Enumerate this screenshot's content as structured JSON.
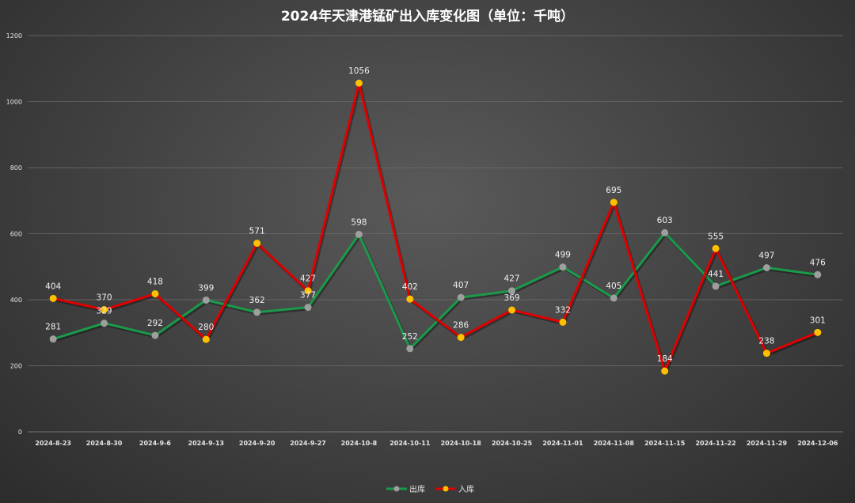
{
  "chart_data": {
    "type": "line",
    "title": "2024年天津港锰矿出入库变化图（单位：千吨）",
    "categories": [
      "2024-8-23",
      "2024-8-30",
      "2024-9-6",
      "2024-9-13",
      "2024-9-20",
      "2024-9-27",
      "2024-10-8",
      "2024-10-11",
      "2024-10-18",
      "2024-10-25",
      "2024-11-01",
      "2024-11-08",
      "2024-11-15",
      "2024-11-22",
      "2024-11-29",
      "2024-12-06"
    ],
    "y_ticks": [
      "0",
      "200",
      "400",
      "600",
      "800",
      "1000",
      "1200"
    ],
    "ylim": [
      0,
      1200
    ],
    "grid": true,
    "legend_position": "bottom-center",
    "series": [
      {
        "name": "出库",
        "color": "#1a9a4a",
        "marker_color": "#9e9e9e",
        "values": [
          281,
          329,
          292,
          399,
          362,
          377,
          598,
          252,
          407,
          427,
          499,
          405,
          603,
          441,
          497,
          476
        ],
        "labels": [
          "281",
          "329",
          "292",
          "399",
          "362",
          "377",
          "598",
          "252",
          "407",
          "427",
          "499",
          "405",
          "603",
          "441",
          "497",
          "476"
        ]
      },
      {
        "name": "入库",
        "color": "#e00000",
        "marker_color": "#ffc000",
        "values": [
          404,
          370,
          418,
          280,
          571,
          427,
          1056,
          402,
          286,
          369,
          332,
          695,
          184,
          555,
          238,
          301
        ],
        "labels": [
          "404",
          "370",
          "418",
          "280",
          "571",
          "427",
          "1056",
          "402",
          "286",
          "369",
          "332",
          "695",
          "184",
          "555",
          "238",
          "301"
        ]
      }
    ]
  }
}
